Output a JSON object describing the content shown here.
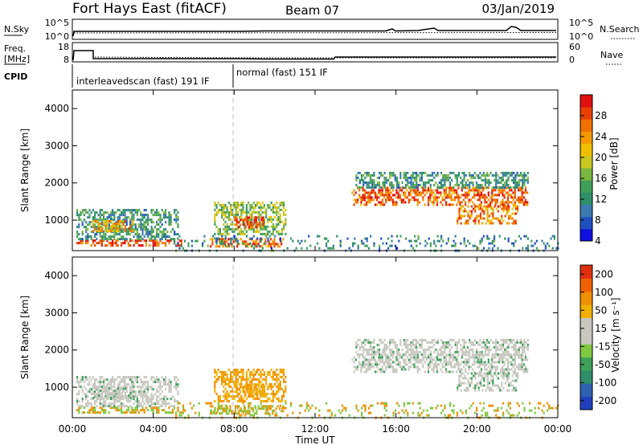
{
  "header": {
    "title": "Fort Hays East (fitACF)",
    "beam": "Beam 07",
    "date": "03/Jan/2019"
  },
  "panels": {
    "nsky": {
      "left_label": "N.Sky",
      "right_label": "N.Search",
      "left_ticks": [
        "10^5",
        "10^0"
      ],
      "right_ticks": [
        "10^5",
        "10^0"
      ]
    },
    "freq": {
      "left_label_1": "Freq.",
      "left_label_2": "[MHz]",
      "right_label": "Nave",
      "left_ticks": [
        "18",
        "8"
      ],
      "right_ticks": [
        "60",
        "0"
      ]
    },
    "cpid": {
      "label": "CPID",
      "modes": [
        {
          "name": "interleavedscan (fast) 191 IF",
          "start": "00:00",
          "end": "08:00"
        },
        {
          "name": "normal (fast) 151 IF",
          "start": "08:00",
          "end": "24:00"
        }
      ]
    }
  },
  "axes": {
    "ylabel": "Slant Range [km]",
    "yticks": [
      "1000",
      "2000",
      "3000",
      "4000"
    ],
    "xlabel": "Time UT",
    "xticks": [
      "00:00",
      "04:00",
      "08:00",
      "12:00",
      "16:00",
      "20:00",
      "00:00"
    ]
  },
  "colorbars": {
    "power": {
      "label": "Power [dB]",
      "ticks": [
        "4",
        "8",
        "12",
        "16",
        "20",
        "24",
        "28"
      ],
      "colors": [
        "#1010e0",
        "#2050c0",
        "#3a7ab0",
        "#2f8f6a",
        "#3fa05a",
        "#7ab640",
        "#c8c820",
        "#f0c000",
        "#f49a00",
        "#f07000",
        "#e84000",
        "#e01010"
      ]
    },
    "velocity": {
      "label": "Velocity [m s⁻¹]",
      "ticks": [
        "200",
        "100",
        "50",
        "15",
        "-15",
        "-50",
        "-100",
        "-200"
      ],
      "colors": [
        "#2040c0",
        "#3060b0",
        "#2f8f6a",
        "#3fa05a",
        "#80c840",
        "#c8c8c0",
        "#c8c8c0",
        "#f0b000",
        "#f09000",
        "#f06000",
        "#e03010"
      ]
    }
  },
  "chart_data": {
    "type": "heatmap",
    "x_range_hours": [
      0,
      24
    ],
    "y_range_km": [
      180,
      4500
    ],
    "power_patches": [
      {
        "t0": 0.2,
        "t1": 5.5,
        "r0": 300,
        "r1": 480,
        "p": 26
      },
      {
        "t0": 0.2,
        "t1": 5.2,
        "r0": 500,
        "r1": 1300,
        "p": 10
      },
      {
        "t0": 1.0,
        "t1": 3.0,
        "r0": 700,
        "r1": 1000,
        "p": 20
      },
      {
        "t0": 6.8,
        "t1": 10.4,
        "r0": 300,
        "r1": 520,
        "p": 24
      },
      {
        "t0": 7.0,
        "t1": 10.5,
        "r0": 600,
        "r1": 1500,
        "p": 14
      },
      {
        "t0": 8.0,
        "t1": 9.4,
        "r0": 800,
        "r1": 1100,
        "p": 26
      },
      {
        "t0": 13.8,
        "t1": 22.5,
        "r0": 1400,
        "r1": 1900,
        "p": 24
      },
      {
        "t0": 14.0,
        "t1": 22.5,
        "r0": 1900,
        "r1": 2300,
        "p": 10
      },
      {
        "t0": 19.0,
        "t1": 22.0,
        "r0": 900,
        "r1": 1400,
        "p": 22
      },
      {
        "t0": 5.0,
        "t1": 24.0,
        "r0": 200,
        "r1": 600,
        "p": 8
      }
    ]
  }
}
